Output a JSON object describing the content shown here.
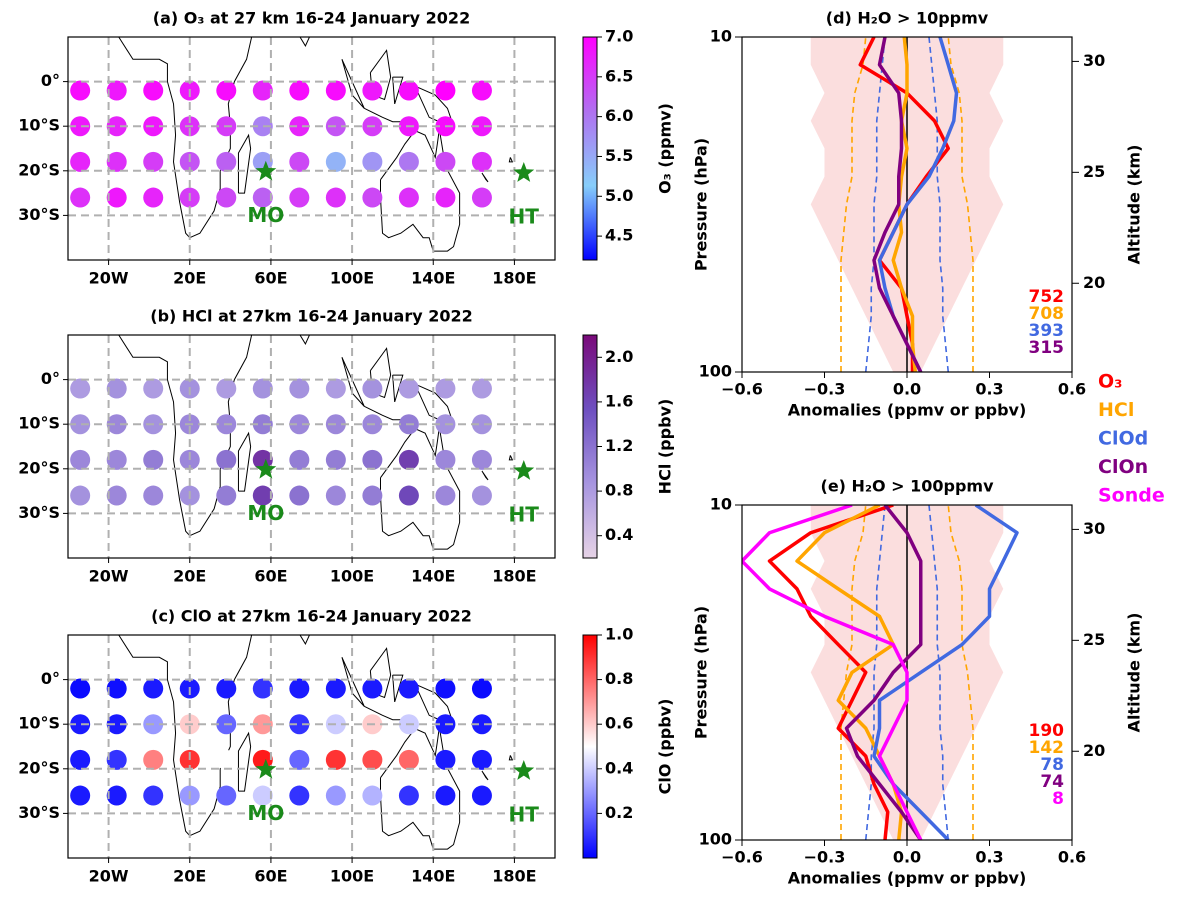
{
  "chart_data": [
    {
      "type": "scatter",
      "title": "(a) O₃ at 27 km 16-24 January 2022",
      "xlim": [
        -40,
        200
      ],
      "ylim": [
        -40,
        10
      ],
      "xticks": [
        {
          "value": -20,
          "label": "20W"
        },
        {
          "value": 20,
          "label": "20E"
        },
        {
          "value": 60,
          "label": "60E"
        },
        {
          "value": 100,
          "label": "100E"
        },
        {
          "value": 140,
          "label": "140E"
        },
        {
          "value": 180,
          "label": "180E"
        }
      ],
      "yticks": [
        {
          "value": 0,
          "label": "0°"
        },
        {
          "value": -10,
          "label": "10°S"
        },
        {
          "value": -20,
          "label": "20°S"
        },
        {
          "value": -30,
          "label": "30°S"
        }
      ],
      "grid": true,
      "x": [
        -34,
        -16,
        2,
        20,
        38,
        56,
        74,
        92,
        110,
        128,
        146,
        164,
        -34,
        -16,
        2,
        20,
        38,
        56,
        74,
        92,
        110,
        128,
        146,
        164,
        -34,
        -16,
        2,
        20,
        38,
        56,
        74,
        92,
        110,
        128,
        146,
        164,
        -34,
        -16,
        2,
        20,
        38,
        56,
        74,
        92,
        110,
        128,
        146,
        164
      ],
      "y": [
        -26,
        -26,
        -26,
        -26,
        -26,
        -26,
        -26,
        -26,
        -26,
        -26,
        -26,
        -26,
        -18,
        -18,
        -18,
        -18,
        -18,
        -18,
        -18,
        -18,
        -18,
        -18,
        -18,
        -18,
        -10,
        -10,
        -10,
        -10,
        -10,
        -10,
        -10,
        -10,
        -10,
        -10,
        -10,
        -10,
        -2,
        -2,
        -2,
        -2,
        -2,
        -2,
        -2,
        -2,
        -2,
        -2,
        -2,
        -2
      ],
      "values": [
        6.6,
        6.8,
        6.7,
        6.5,
        6.4,
        6.2,
        6.5,
        6.6,
        6.4,
        6.6,
        6.7,
        6.5,
        6.7,
        6.6,
        6.5,
        6.3,
        6.2,
        5.6,
        6.4,
        5.4,
        5.7,
        6.0,
        6.4,
        6.6,
        6.8,
        6.7,
        6.8,
        6.6,
        6.5,
        5.9,
        6.7,
        6.3,
        6.5,
        6.8,
        6.9,
        6.8,
        6.9,
        6.8,
        6.9,
        6.8,
        6.9,
        6.7,
        6.9,
        6.9,
        6.8,
        6.9,
        7.0,
        6.9
      ],
      "colormap": [
        "#0000ff",
        "#87cefa",
        "#b070f0",
        "#ff00ff"
      ],
      "clim": [
        4.2,
        7.0
      ],
      "cticks": [
        4.5,
        {
          "value": 5,
          "label": "5.0"
        },
        5.5,
        {
          "value": 6,
          "label": "6.0"
        },
        6.5,
        {
          "value": 7,
          "label": "7.0"
        }
      ],
      "colorbar_label": "O₃ (ppmv)",
      "markers": [
        {
          "label": "MO",
          "x": 57.5,
          "y": -20.2,
          "color": "#1a8a1a"
        },
        {
          "label": "HT",
          "x": 184.6,
          "y": -20.5,
          "color": "#1a8a1a"
        }
      ]
    },
    {
      "type": "scatter",
      "title": "(b) HCl at 27km 16-24 January 2022",
      "xlim": [
        -40,
        200
      ],
      "ylim": [
        -40,
        10
      ],
      "xticks": [
        {
          "value": -20,
          "label": "20W"
        },
        {
          "value": 20,
          "label": "20E"
        },
        {
          "value": 60,
          "label": "60E"
        },
        {
          "value": 100,
          "label": "100E"
        },
        {
          "value": 140,
          "label": "140E"
        },
        {
          "value": 180,
          "label": "180E"
        }
      ],
      "yticks": [
        {
          "value": 0,
          "label": "0°"
        },
        {
          "value": -10,
          "label": "10°S"
        },
        {
          "value": -20,
          "label": "20°S"
        },
        {
          "value": -30,
          "label": "30°S"
        }
      ],
      "grid": true,
      "x": [
        -34,
        -16,
        2,
        20,
        38,
        56,
        74,
        92,
        110,
        128,
        146,
        164,
        -34,
        -16,
        2,
        20,
        38,
        56,
        74,
        92,
        110,
        128,
        146,
        164,
        -34,
        -16,
        2,
        20,
        38,
        56,
        74,
        92,
        110,
        128,
        146,
        164,
        -34,
        -16,
        2,
        20,
        38,
        56,
        74,
        92,
        110,
        128,
        146,
        164
      ],
      "y": [
        -26,
        -26,
        -26,
        -26,
        -26,
        -26,
        -26,
        -26,
        -26,
        -26,
        -26,
        -26,
        -18,
        -18,
        -18,
        -18,
        -18,
        -18,
        -18,
        -18,
        -18,
        -18,
        -18,
        -18,
        -10,
        -10,
        -10,
        -10,
        -10,
        -10,
        -10,
        -10,
        -10,
        -10,
        -10,
        -10,
        -2,
        -2,
        -2,
        -2,
        -2,
        -2,
        -2,
        -2,
        -2,
        -2,
        -2,
        -2
      ],
      "values": [
        0.9,
        1.0,
        1.0,
        0.9,
        1.1,
        1.7,
        1.2,
        1.0,
        1.1,
        1.6,
        1.0,
        0.9,
        1.0,
        1.0,
        1.1,
        1.0,
        1.2,
        1.8,
        1.1,
        1.1,
        1.2,
        1.7,
        1.0,
        1.0,
        0.9,
        1.0,
        0.9,
        1.0,
        1.0,
        1.1,
        1.0,
        1.0,
        1.0,
        1.1,
        0.9,
        0.9,
        0.8,
        0.9,
        0.8,
        0.9,
        0.8,
        0.9,
        0.9,
        0.8,
        0.9,
        0.8,
        0.8,
        0.8
      ],
      "colormap": [
        "#e6d3e6",
        "#a795e0",
        "#6e4fc0",
        "#7a0a7a"
      ],
      "clim": [
        0.2,
        2.2
      ],
      "cticks": [
        0.4,
        0.8,
        1.2,
        1.6,
        {
          "value": 2,
          "label": "2.0"
        }
      ],
      "colorbar_label": "HCl (ppbv)",
      "markers": [
        {
          "label": "MO",
          "x": 57.5,
          "y": -20.2,
          "color": "#1a8a1a"
        },
        {
          "label": "HT",
          "x": 184.6,
          "y": -20.5,
          "color": "#1a8a1a"
        }
      ]
    },
    {
      "type": "scatter",
      "title": "(c) ClO at 27km 16-24 January 2022",
      "xlim": [
        -40,
        200
      ],
      "ylim": [
        -40,
        10
      ],
      "xticks": [
        {
          "value": -20,
          "label": "20W"
        },
        {
          "value": 20,
          "label": "20E"
        },
        {
          "value": 60,
          "label": "60E"
        },
        {
          "value": 100,
          "label": "100E"
        },
        {
          "value": 140,
          "label": "140E"
        },
        {
          "value": 180,
          "label": "180E"
        }
      ],
      "yticks": [
        {
          "value": 0,
          "label": "0°"
        },
        {
          "value": -10,
          "label": "10°S"
        },
        {
          "value": -20,
          "label": "20°S"
        },
        {
          "value": -30,
          "label": "30°S"
        }
      ],
      "grid": true,
      "x": [
        -34,
        -16,
        2,
        20,
        38,
        56,
        74,
        92,
        110,
        128,
        146,
        164,
        -34,
        -16,
        2,
        20,
        38,
        56,
        74,
        92,
        110,
        128,
        146,
        164,
        -34,
        -16,
        2,
        20,
        38,
        56,
        74,
        92,
        110,
        128,
        146,
        164,
        -34,
        -16,
        2,
        20,
        38,
        56,
        74,
        92,
        110,
        128,
        146,
        164
      ],
      "y": [
        -26,
        -26,
        -26,
        -26,
        -26,
        -26,
        -26,
        -26,
        -26,
        -26,
        -26,
        -26,
        -18,
        -18,
        -18,
        -18,
        -18,
        -18,
        -18,
        -18,
        -18,
        -18,
        -18,
        -18,
        -10,
        -10,
        -10,
        -10,
        -10,
        -10,
        -10,
        -10,
        -10,
        -10,
        -10,
        -10,
        -2,
        -2,
        -2,
        -2,
        -2,
        -2,
        -2,
        -2,
        -2,
        -2,
        -2,
        -2
      ],
      "values": [
        0.05,
        0.05,
        0.1,
        0.3,
        0.2,
        0.4,
        0.1,
        0.3,
        0.35,
        0.1,
        0.05,
        0.05,
        0.05,
        0.1,
        0.75,
        0.9,
        0.5,
        0.95,
        0.2,
        0.9,
        0.85,
        0.8,
        0.05,
        0.05,
        0.05,
        0.05,
        0.3,
        0.6,
        0.2,
        0.7,
        0.1,
        0.4,
        0.6,
        0.4,
        0.05,
        0.05,
        0.02,
        0.03,
        0.05,
        0.05,
        0.05,
        0.1,
        0.05,
        0.05,
        0.05,
        0.05,
        0.03,
        0.02
      ],
      "colormap": [
        "#0000ff",
        "#ffffff",
        "#ff0000"
      ],
      "clim": [
        0,
        1
      ],
      "cticks": [
        0.2,
        0.4,
        0.6,
        0.8,
        {
          "value": 1,
          "label": "1.0"
        }
      ],
      "colorbar_label": "ClO (ppbv)",
      "markers": [
        {
          "label": "MO",
          "x": 57.5,
          "y": -20.2,
          "color": "#1a8a1a"
        },
        {
          "label": "HT",
          "x": 184.6,
          "y": -20.5,
          "color": "#1a8a1a"
        }
      ]
    },
    {
      "type": "profile",
      "title": "(d) H₂O > 10ppmv",
      "y": [
        100,
        82.5,
        68.1,
        56.2,
        46.4,
        38.3,
        31.6,
        26.1,
        21.5,
        17.8,
        14.7,
        12.1,
        10
      ],
      "ylim": [
        100,
        10
      ],
      "ylog": true,
      "yticks": [
        10,
        100
      ],
      "y2lim": [
        16.0,
        31.1
      ],
      "y2ticks": [
        20,
        25,
        30
      ],
      "xlim": [
        -0.6,
        0.6
      ],
      "xticks": [
        {
          "value": -0.6,
          "label": "−0.6"
        },
        {
          "value": -0.3,
          "label": "−0.3"
        },
        {
          "value": 0,
          "label": "0.0"
        },
        0.3,
        0.6
      ],
      "xlabel": "Anomalies (ppmv or ppbv)",
      "ylabel": "Pressure (hPa)",
      "y2label": "Altitude (km)",
      "envelopes": [
        {
          "color": "#f9d0d0",
          "dashed": false,
          "lower": [
            -0.05,
            -0.1,
            -0.15,
            -0.2,
            -0.25,
            -0.3,
            -0.35,
            -0.3,
            -0.3,
            -0.35,
            -0.3,
            -0.35,
            -0.35
          ],
          "upper": [
            0.05,
            0.1,
            0.15,
            0.2,
            0.25,
            0.3,
            0.35,
            0.3,
            0.3,
            0.35,
            0.3,
            0.35,
            0.35
          ]
        },
        {
          "color": "#ffa500",
          "dashed": true,
          "lower": [
            -0.24,
            -0.24,
            -0.24,
            -0.24,
            -0.24,
            -0.23,
            -0.22,
            -0.2,
            -0.2,
            -0.2,
            -0.19,
            -0.16,
            -0.15
          ],
          "upper": [
            0.24,
            0.24,
            0.24,
            0.24,
            0.24,
            0.23,
            0.22,
            0.2,
            0.2,
            0.2,
            0.19,
            0.16,
            0.15
          ]
        },
        {
          "color": "#4169e1",
          "dashed": true,
          "lower": [
            -0.15,
            -0.14,
            -0.13,
            -0.13,
            -0.12,
            -0.12,
            -0.12,
            -0.11,
            -0.11,
            -0.11,
            -0.1,
            -0.09,
            -0.08
          ],
          "upper": [
            0.15,
            0.14,
            0.13,
            0.13,
            0.12,
            0.12,
            0.12,
            0.11,
            0.11,
            0.11,
            0.1,
            0.09,
            0.08
          ]
        }
      ],
      "series": [
        {
          "color": "#ff0000",
          "count": 752,
          "values": [
            0.02,
            0.02,
            0.0,
            -0.02,
            -0.1,
            -0.05,
            0.0,
            0.07,
            0.15,
            0.1,
            0.0,
            -0.17,
            -0.12
          ]
        },
        {
          "color": "#ffa500",
          "count": 708,
          "values": [
            0.03,
            0.02,
            0.02,
            -0.02,
            -0.05,
            -0.02,
            -0.03,
            -0.02,
            0.0,
            -0.02,
            0.0,
            0.0,
            -0.01
          ]
        },
        {
          "color": "#4169e1",
          "count": 393,
          "values": [
            0.05,
            0.0,
            -0.05,
            -0.08,
            -0.1,
            -0.05,
            0.0,
            0.08,
            0.13,
            0.17,
            0.18,
            0.15,
            0.12
          ]
        },
        {
          "color": "#800080",
          "count": 315,
          "values": [
            0.05,
            0.0,
            -0.05,
            -0.1,
            -0.12,
            -0.08,
            -0.03,
            -0.03,
            -0.02,
            -0.02,
            -0.03,
            -0.1,
            -0.08
          ]
        }
      ]
    },
    {
      "type": "profile",
      "title": "(e) H₂O > 100ppmv",
      "y": [
        100,
        82.5,
        68.1,
        56.2,
        46.4,
        38.3,
        31.6,
        26.1,
        21.5,
        17.8,
        14.7,
        12.1,
        10
      ],
      "ylim": [
        100,
        10
      ],
      "ylog": true,
      "yticks": [
        10,
        100
      ],
      "y2lim": [
        16.0,
        31.1
      ],
      "y2ticks": [
        20,
        25,
        30
      ],
      "xlim": [
        -0.6,
        0.6
      ],
      "xticks": [
        {
          "value": -0.6,
          "label": "−0.6"
        },
        {
          "value": -0.3,
          "label": "−0.3"
        },
        {
          "value": 0,
          "label": "0.0"
        },
        0.3,
        0.6
      ],
      "xlabel": "Anomalies (ppmv or ppbv)",
      "ylabel": "Pressure (hPa)",
      "y2label": "Altitude (km)",
      "envelopes": [
        {
          "color": "#f9d0d0",
          "dashed": false,
          "lower": [
            -0.05,
            -0.1,
            -0.15,
            -0.2,
            -0.25,
            -0.3,
            -0.35,
            -0.3,
            -0.3,
            -0.35,
            -0.3,
            -0.35,
            -0.35
          ],
          "upper": [
            0.05,
            0.1,
            0.15,
            0.2,
            0.25,
            0.3,
            0.35,
            0.3,
            0.3,
            0.35,
            0.3,
            0.35,
            0.35
          ]
        },
        {
          "color": "#ffa500",
          "dashed": true,
          "lower": [
            -0.24,
            -0.24,
            -0.24,
            -0.24,
            -0.24,
            -0.23,
            -0.22,
            -0.2,
            -0.2,
            -0.2,
            -0.19,
            -0.16,
            -0.15
          ],
          "upper": [
            0.24,
            0.24,
            0.24,
            0.24,
            0.24,
            0.23,
            0.22,
            0.2,
            0.2,
            0.2,
            0.19,
            0.16,
            0.15
          ]
        },
        {
          "color": "#4169e1",
          "dashed": true,
          "lower": [
            -0.15,
            -0.14,
            -0.13,
            -0.13,
            -0.12,
            -0.12,
            -0.12,
            -0.11,
            -0.11,
            -0.11,
            -0.1,
            -0.09,
            -0.08
          ],
          "upper": [
            0.15,
            0.14,
            0.13,
            0.13,
            0.12,
            0.12,
            0.12,
            0.11,
            0.11,
            0.11,
            0.1,
            0.09,
            0.08
          ]
        }
      ],
      "series": [
        {
          "name": "O₃",
          "color": "#ff0000",
          "count": 190,
          "values": [
            -0.08,
            -0.07,
            -0.12,
            -0.15,
            -0.25,
            -0.2,
            -0.15,
            -0.25,
            -0.35,
            -0.4,
            -0.5,
            -0.35,
            -0.05
          ]
        },
        {
          "name": "HCl",
          "color": "#ffa500",
          "count": 142,
          "values": [
            -0.03,
            -0.02,
            -0.05,
            -0.1,
            -0.15,
            -0.25,
            -0.2,
            -0.05,
            -0.1,
            -0.25,
            -0.4,
            -0.3,
            -0.1
          ]
        },
        {
          "name": "ClOd",
          "color": "#4169e1",
          "count": 78,
          "values": [
            0.15,
            0.05,
            -0.05,
            -0.12,
            -0.1,
            -0.1,
            0.05,
            0.2,
            0.3,
            0.3,
            0.35,
            0.4,
            0.25
          ]
        },
        {
          "name": "ClOn",
          "color": "#800080",
          "count": 74,
          "values": [
            0.05,
            -0.02,
            -0.1,
            -0.18,
            -0.22,
            -0.12,
            -0.05,
            0.05,
            0.05,
            0.05,
            0.05,
            0.0,
            -0.08
          ]
        },
        {
          "name": "Sonde",
          "color": "#ff00ff",
          "count": 8,
          "values": [
            0.05,
            0.0,
            -0.05,
            -0.1,
            -0.05,
            0.0,
            0.0,
            -0.05,
            -0.3,
            -0.5,
            -0.6,
            -0.5,
            -0.2
          ]
        }
      ]
    }
  ]
}
